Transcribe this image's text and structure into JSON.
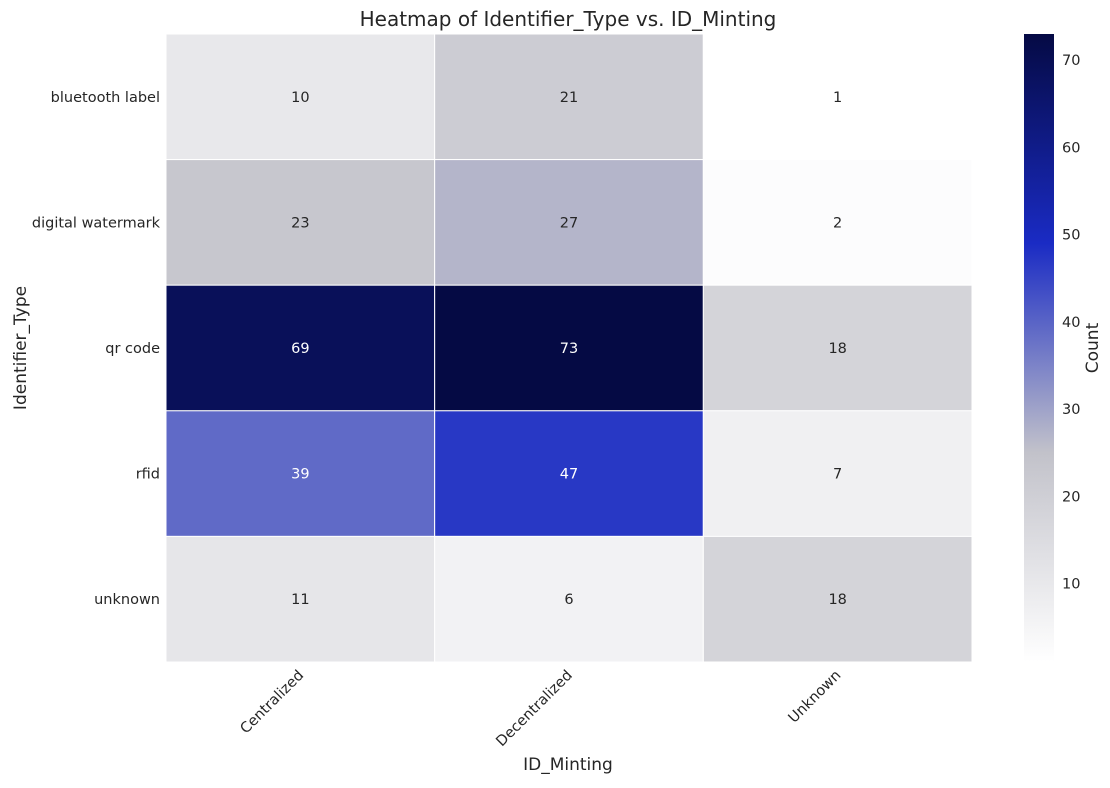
{
  "chart_data": {
    "type": "heatmap",
    "title": "Heatmap of Identifier_Type vs. ID_Minting",
    "xlabel": "ID_Minting",
    "ylabel": "Identifier_Type",
    "x_categories": [
      "Centralized",
      "Decentralized",
      "Unknown"
    ],
    "y_categories": [
      "bluetooth label",
      "digital watermark",
      "qr code",
      "rfid",
      "unknown"
    ],
    "values": [
      [
        10,
        21,
        1
      ],
      [
        23,
        27,
        2
      ],
      [
        69,
        73,
        18
      ],
      [
        39,
        47,
        7
      ],
      [
        11,
        6,
        18
      ]
    ],
    "colorbar": {
      "label": "Count",
      "range": [
        1,
        73
      ],
      "ticks": [
        10,
        20,
        30,
        40,
        50,
        60,
        70
      ],
      "colors": [
        "#ffffff",
        "#c2c2ca",
        "#1a2bc4",
        "#050a44"
      ]
    },
    "annotations": true,
    "grid": false
  }
}
